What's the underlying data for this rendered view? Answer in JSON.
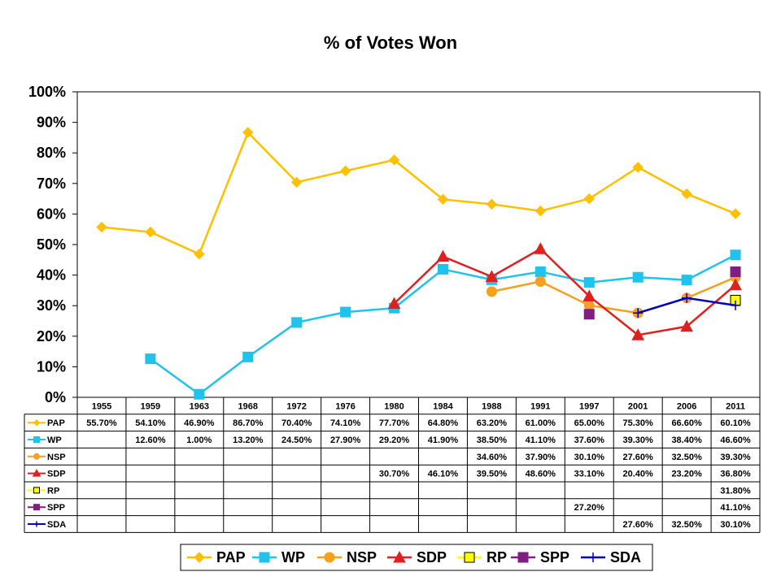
{
  "chart_data": {
    "type": "line",
    "title": "% of Votes Won",
    "categories": [
      "1955",
      "1959",
      "1963",
      "1968",
      "1972",
      "1976",
      "1980",
      "1984",
      "1988",
      "1991",
      "1997",
      "2001",
      "2006",
      "2011"
    ],
    "ylim": [
      0,
      100
    ],
    "yticks": [
      "0%",
      "10%",
      "20%",
      "30%",
      "40%",
      "50%",
      "60%",
      "70%",
      "80%",
      "90%",
      "100%"
    ],
    "grid": false,
    "legend_position": "bottom",
    "series": [
      {
        "name": "PAP",
        "color": "#FFC000",
        "marker": "diamond",
        "values": [
          55.7,
          54.1,
          46.9,
          86.7,
          70.4,
          74.1,
          77.7,
          64.8,
          63.2,
          61.0,
          65.0,
          75.3,
          66.6,
          60.1
        ],
        "labels": [
          "55.70%",
          "54.10%",
          "46.90%",
          "86.70%",
          "70.40%",
          "74.10%",
          "77.70%",
          "64.80%",
          "63.20%",
          "61.00%",
          "65.00%",
          "75.30%",
          "66.60%",
          "60.10%"
        ]
      },
      {
        "name": "WP",
        "color": "#1FC3EB",
        "marker": "square",
        "values": [
          null,
          12.6,
          1.0,
          13.2,
          24.5,
          27.9,
          29.2,
          41.9,
          38.5,
          41.1,
          37.6,
          39.3,
          38.4,
          46.6
        ],
        "labels": [
          "",
          "12.60%",
          "1.00%",
          "13.20%",
          "24.50%",
          "27.90%",
          "29.20%",
          "41.90%",
          "38.50%",
          "41.10%",
          "37.60%",
          "39.30%",
          "38.40%",
          "46.60%"
        ]
      },
      {
        "name": "NSP",
        "color": "#F4A11F",
        "marker": "circle",
        "values": [
          null,
          null,
          null,
          null,
          null,
          null,
          null,
          null,
          34.6,
          37.9,
          30.1,
          27.6,
          32.5,
          39.3
        ],
        "labels": [
          "",
          "",
          "",
          "",
          "",
          "",
          "",
          "",
          "34.60%",
          "37.90%",
          "30.10%",
          "27.60%",
          "32.50%",
          "39.30%"
        ]
      },
      {
        "name": "SDP",
        "color": "#E21F1F",
        "marker": "triangle",
        "values": [
          null,
          null,
          null,
          null,
          null,
          null,
          30.7,
          46.1,
          39.5,
          48.6,
          33.1,
          20.4,
          23.2,
          36.8
        ],
        "labels": [
          "",
          "",
          "",
          "",
          "",
          "",
          "30.70%",
          "46.10%",
          "39.50%",
          "48.60%",
          "33.10%",
          "20.40%",
          "23.20%",
          "36.80%"
        ]
      },
      {
        "name": "RP",
        "color": "#FFFF00",
        "marker": "square-outline",
        "values": [
          null,
          null,
          null,
          null,
          null,
          null,
          null,
          null,
          null,
          null,
          null,
          null,
          null,
          31.8
        ],
        "labels": [
          "",
          "",
          "",
          "",
          "",
          "",
          "",
          "",
          "",
          "",
          "",
          "",
          "",
          "31.80%"
        ]
      },
      {
        "name": "SPP",
        "color": "#7F1F7F",
        "marker": "square",
        "values": [
          null,
          null,
          null,
          null,
          null,
          null,
          null,
          null,
          null,
          null,
          27.2,
          null,
          null,
          41.1
        ],
        "labels": [
          "",
          "",
          "",
          "",
          "",
          "",
          "",
          "",
          "",
          "",
          "27.20%",
          "",
          "",
          "41.10%"
        ]
      },
      {
        "name": "SDA",
        "color": "#0000BF",
        "marker": "plus",
        "values": [
          null,
          null,
          null,
          null,
          null,
          null,
          null,
          null,
          null,
          null,
          null,
          27.6,
          32.5,
          30.1
        ],
        "labels": [
          "",
          "",
          "",
          "",
          "",
          "",
          "",
          "",
          "",
          "",
          "",
          "27.60%",
          "32.50%",
          "30.10%"
        ]
      }
    ]
  }
}
